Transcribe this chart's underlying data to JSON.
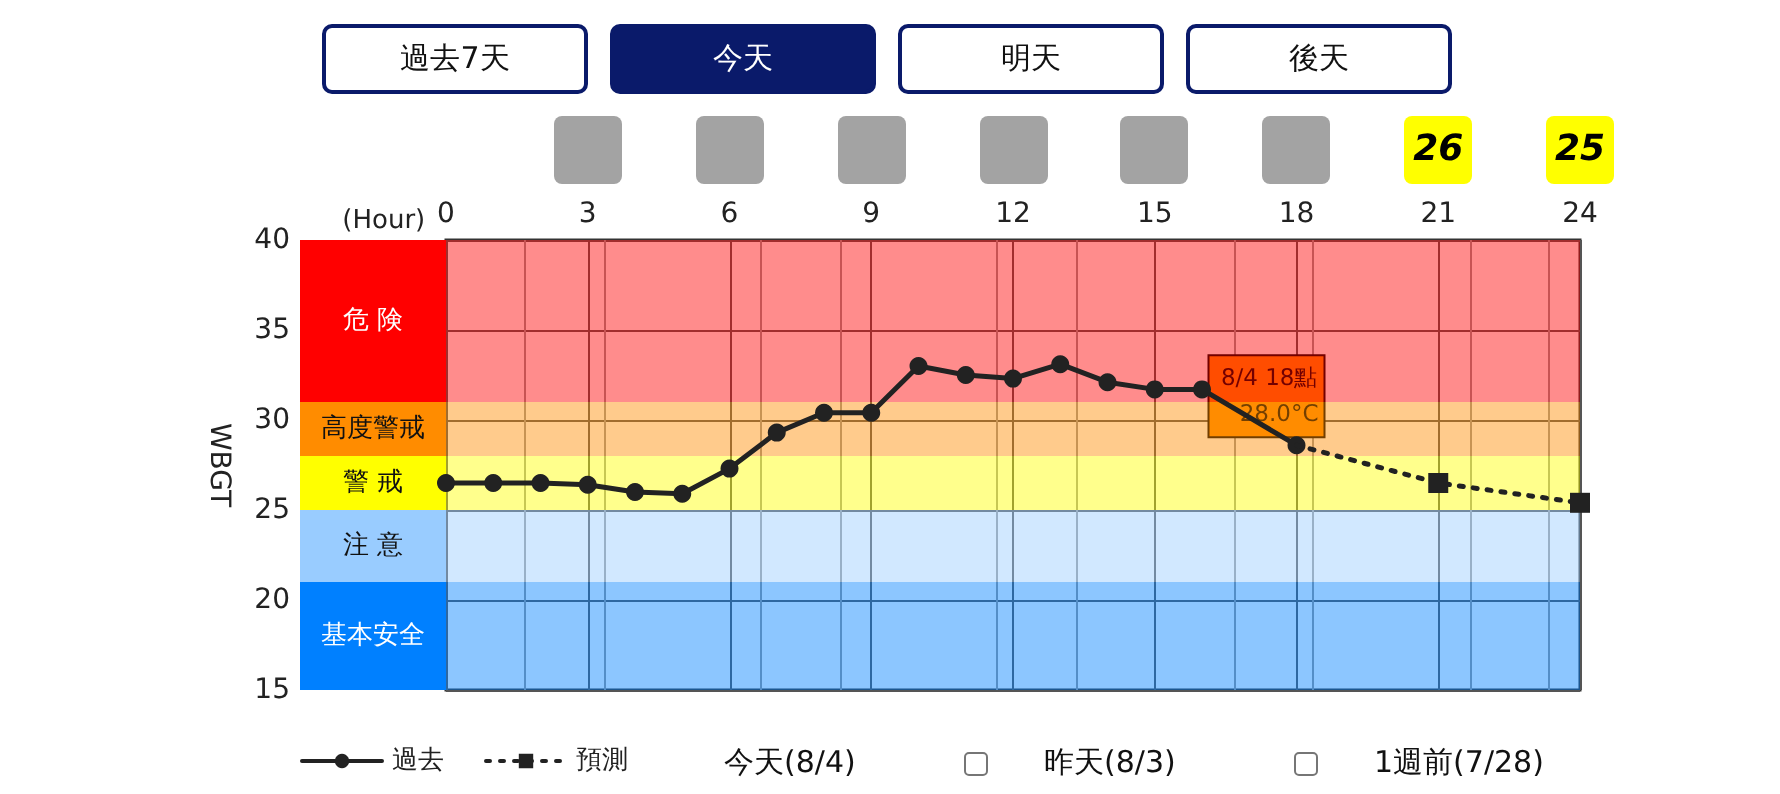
{
  "chart_data": {
    "type": "line",
    "xlabel": "(Hour)",
    "ylabel": "WBGT",
    "xlim": [
      0,
      24
    ],
    "xticks": [
      0,
      3,
      6,
      9,
      12,
      15,
      18,
      21,
      24
    ],
    "ylim": [
      15,
      40
    ],
    "yticks": [
      15,
      20,
      25,
      30,
      35,
      40
    ],
    "grid": true,
    "legend": "bottom left",
    "series": [
      {
        "name": "過去",
        "color": "#222222",
        "marker": "circle",
        "line_style": "solid",
        "x": [
          0,
          1,
          2,
          3,
          4,
          5,
          6,
          7,
          8,
          9,
          10,
          11,
          12,
          13,
          14,
          15,
          16,
          17,
          18
        ],
        "values": [
          26.5,
          26.5,
          26.5,
          26.4,
          26.0,
          25.9,
          27.3,
          29.3,
          30.4,
          30.4,
          33.0,
          32.5,
          32.3,
          33.1,
          32.1,
          31.7,
          31.7,
          null,
          28.6
        ]
      },
      {
        "name": "預測",
        "color": "#222222",
        "marker": "square",
        "line_style": "dotted",
        "x": [
          18,
          21,
          24
        ],
        "values": [
          28.6,
          26.5,
          25.4
        ]
      }
    ],
    "bands": [
      {
        "axis": "y",
        "from": 31,
        "to": 40,
        "label": "危 険",
        "color": "#ff0000"
      },
      {
        "axis": "y",
        "from": 28,
        "to": 31,
        "label": "高度警戒",
        "color": "#ff8c00"
      },
      {
        "axis": "y",
        "from": 25,
        "to": 28,
        "label": "警 戒",
        "color": "#ffff00"
      },
      {
        "axis": "y",
        "from": 21,
        "to": 25,
        "label": "注 意",
        "color": "#99ccff"
      },
      {
        "axis": "y",
        "from": 15,
        "to": 21,
        "label": "基本安全",
        "color": "#0080ff"
      }
    ],
    "annotations": [
      "過去7天",
      "今天",
      "明天",
      "後天",
      "今天(8/4)",
      "昨天(8/3)",
      "1週前(7/28)",
      "26",
      "25",
      {
        "text": "8/4 18點\n28.0°C",
        "x": 18,
        "y": 28.6
      }
    ]
  }
}
